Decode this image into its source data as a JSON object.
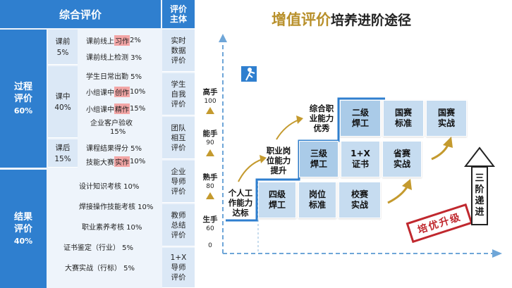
{
  "left_table": {
    "header_main": "综合评价",
    "header_side": "评价\n主体",
    "process": {
      "label": "过程\n评价",
      "percent": "60%"
    },
    "result": {
      "label": "结果\n评价",
      "percent": "40%"
    },
    "phases": [
      {
        "name": "课前",
        "percent": "5%"
      },
      {
        "name": "课中",
        "percent": "40%"
      },
      {
        "name": "课后",
        "percent": "15%"
      }
    ],
    "items": [
      {
        "pre": "课前线上",
        "hl": "习作",
        "post": " 2%"
      },
      {
        "pre": "课前线上检测 3%",
        "hl": "",
        "post": ""
      },
      {
        "pre": "学生日常出勤 5%",
        "hl": "",
        "post": ""
      },
      {
        "pre": "小组课中",
        "hl": "创作",
        "post": " 10%"
      },
      {
        "pre": "小组课中",
        "hl": "精作",
        "post": " 15%"
      },
      {
        "pre": "企业客户验收",
        "hl": "",
        "post": ""
      },
      {
        "pre": "课程结果得分 5%",
        "hl": "",
        "post": ""
      },
      {
        "pre": "技能大赛",
        "hl": "实作",
        "post": " 10%"
      }
    ],
    "item6_percent": "15%",
    "result_items": [
      "设计知识考核 10%",
      "焊接操作技能考核 10%",
      "职业素养考核   10%",
      "证书鉴定（行业）   5%",
      "大赛实战（行标）   5%"
    ],
    "subjects": [
      "实时\n数据\n评价",
      "学生\n自我\n评价",
      "团队\n相互\n评价",
      "企业\n导师\n评价",
      "教师\n总结\n评价",
      "1+X\n导师\n评价"
    ]
  },
  "diagram": {
    "title_accent": "增值评价",
    "title_rest": "培养进阶途径",
    "levels": [
      {
        "name": "高手",
        "value": "100"
      },
      {
        "name": "能手",
        "value": "90"
      },
      {
        "name": "熟手",
        "value": "80"
      },
      {
        "name": "生手",
        "value": "60"
      }
    ],
    "origin": "0",
    "steps": [
      "个人工\n作能力\n达标",
      "职业岗\n位能力\n提升",
      "综合职\n业能力\n优秀"
    ],
    "row_bottom": [
      "四级\n焊工",
      "岗位\n标准",
      "校赛\n实战"
    ],
    "row_mid": [
      "三级\n焊工",
      "1+X\n证书",
      "省赛\n实战"
    ],
    "row_top": [
      "二级\n焊工",
      "国赛\n标准",
      "国赛\n实战"
    ],
    "stamp": "培优升级",
    "vertical_label": "三\n阶\n递\n进",
    "colors": {
      "primary_blue": "#2f7fcf",
      "light_blue": "#c6dcf0",
      "gold": "#c49a2e",
      "stamp_red": "#c0282e"
    }
  }
}
